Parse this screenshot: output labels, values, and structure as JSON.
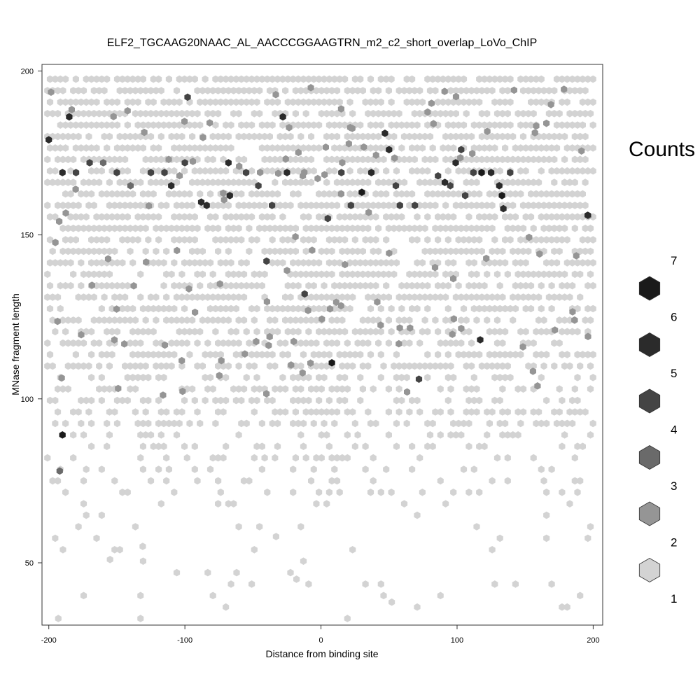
{
  "chart_data": {
    "type": "heatmap",
    "subtype": "hexbin",
    "title": "ELF2_TGCAAG20NAAC_AL_AACCCGGAAGTRN_m2_c2_short_overlap_LoVo_ChIP",
    "xlabel": "Distance from binding site",
    "ylabel": "MNase fragment length",
    "xlim": [
      -205,
      207
    ],
    "ylim": [
      31,
      202
    ],
    "x_ticks": [
      -200,
      -100,
      0,
      100,
      200
    ],
    "x_tick_labels": [
      "-200",
      "-100",
      "0",
      "100",
      "200"
    ],
    "y_ticks": [
      50,
      100,
      150,
      200
    ],
    "y_tick_labels": [
      "50",
      "100",
      "150",
      "200"
    ],
    "grid": false,
    "legend": {
      "title": "Counts",
      "placement": "right",
      "boundary_labels": [
        "7",
        "6",
        "5",
        "4",
        "3",
        "2",
        "1"
      ],
      "swatch_colors": [
        "#1a1a1a",
        "#2b2b2b",
        "#444444",
        "#6a6a6a",
        "#959595",
        "#d3d3d3"
      ]
    },
    "color_scale": {
      "1": "#d3d3d3",
      "2": "#959595",
      "3": "#6a6a6a",
      "4": "#444444",
      "5": "#2b2b2b",
      "6": "#1a1a1a",
      "7": "#0a0a0a"
    },
    "density_profile": [
      {
        "y_range": [
          150,
          200
        ],
        "typical_count": 1,
        "fill_fraction": 0.78
      },
      {
        "y_range": [
          110,
          150
        ],
        "typical_count": 1,
        "fill_fraction": 0.62
      },
      {
        "y_range": [
          90,
          110
        ],
        "typical_count": 1,
        "fill_fraction": 0.42
      },
      {
        "y_range": [
          70,
          90
        ],
        "typical_count": 1,
        "fill_fraction": 0.2
      },
      {
        "y_range": [
          31,
          70
        ],
        "typical_count": 1,
        "fill_fraction": 0.05
      }
    ],
    "highlighted_bins": [
      {
        "x": -200,
        "y": 179,
        "count": 5
      },
      {
        "x": -190,
        "y": 169,
        "count": 5
      },
      {
        "x": -185,
        "y": 186,
        "count": 5
      },
      {
        "x": -190,
        "y": 89,
        "count": 6
      },
      {
        "x": -192,
        "y": 78,
        "count": 3
      },
      {
        "x": -180,
        "y": 169,
        "count": 4
      },
      {
        "x": -170,
        "y": 172,
        "count": 4
      },
      {
        "x": -160,
        "y": 172,
        "count": 3
      },
      {
        "x": -150,
        "y": 169,
        "count": 4
      },
      {
        "x": -140,
        "y": 165,
        "count": 3
      },
      {
        "x": -125,
        "y": 169,
        "count": 4
      },
      {
        "x": -115,
        "y": 169,
        "count": 4
      },
      {
        "x": -110,
        "y": 165,
        "count": 5
      },
      {
        "x": -100,
        "y": 172,
        "count": 4
      },
      {
        "x": -98,
        "y": 192,
        "count": 4
      },
      {
        "x": -88,
        "y": 160,
        "count": 5
      },
      {
        "x": -84,
        "y": 159,
        "count": 5
      },
      {
        "x": -68,
        "y": 172,
        "count": 5
      },
      {
        "x": -67,
        "y": 162,
        "count": 5
      },
      {
        "x": -55,
        "y": 169,
        "count": 4
      },
      {
        "x": -46,
        "y": 165,
        "count": 4
      },
      {
        "x": -40,
        "y": 142,
        "count": 4
      },
      {
        "x": -36,
        "y": 159,
        "count": 4
      },
      {
        "x": -28,
        "y": 186,
        "count": 5
      },
      {
        "x": -25,
        "y": 169,
        "count": 5
      },
      {
        "x": -12,
        "y": 132,
        "count": 4
      },
      {
        "x": 5,
        "y": 155,
        "count": 4
      },
      {
        "x": 8,
        "y": 111,
        "count": 6
      },
      {
        "x": 15,
        "y": 169,
        "count": 4
      },
      {
        "x": 22,
        "y": 159,
        "count": 4
      },
      {
        "x": 30,
        "y": 163,
        "count": 6
      },
      {
        "x": 37,
        "y": 169,
        "count": 5
      },
      {
        "x": 47,
        "y": 181,
        "count": 5
      },
      {
        "x": 50,
        "y": 176,
        "count": 5
      },
      {
        "x": 55,
        "y": 165,
        "count": 4
      },
      {
        "x": 58,
        "y": 159,
        "count": 4
      },
      {
        "x": 69,
        "y": 159,
        "count": 4
      },
      {
        "x": 95,
        "y": 165,
        "count": 4
      },
      {
        "x": 99,
        "y": 172,
        "count": 5
      },
      {
        "x": 106,
        "y": 162,
        "count": 4
      },
      {
        "x": 112,
        "y": 169,
        "count": 4
      },
      {
        "x": 118,
        "y": 169,
        "count": 6
      },
      {
        "x": 125,
        "y": 169,
        "count": 5
      },
      {
        "x": 131,
        "y": 165,
        "count": 5
      },
      {
        "x": 133,
        "y": 162,
        "count": 6
      },
      {
        "x": 134,
        "y": 158,
        "count": 5
      },
      {
        "x": 139,
        "y": 169,
        "count": 4
      },
      {
        "x": 196,
        "y": 156,
        "count": 5
      },
      {
        "x": 117,
        "y": 118,
        "count": 5
      },
      {
        "x": 72,
        "y": 106,
        "count": 4
      },
      {
        "x": 86,
        "y": 168,
        "count": 4
      },
      {
        "x": 91,
        "y": 166,
        "count": 5
      },
      {
        "x": 103,
        "y": 176,
        "count": 4
      }
    ]
  }
}
